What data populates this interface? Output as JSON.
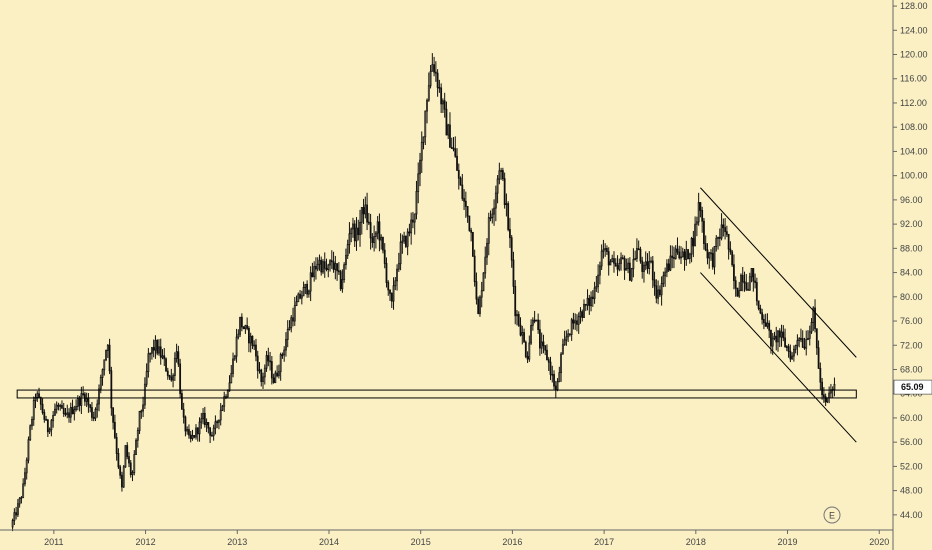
{
  "colors": {
    "background": "#fbf0c4",
    "candle": "#111111",
    "axis": "#666666",
    "text": "#444444",
    "channel": "#000000",
    "last_price_badge": "#ffffff"
  },
  "events_badge": "E",
  "chart_data": {
    "type": "candlestick",
    "x_ticks": [
      "2011",
      "2012",
      "2013",
      "2014",
      "2015",
      "2016",
      "2017",
      "2018",
      "2019",
      "2020"
    ],
    "y_ticks": [
      44,
      48,
      52,
      56,
      60,
      64,
      68,
      72,
      76,
      80,
      84,
      88,
      92,
      96,
      100,
      104,
      108,
      112,
      116,
      120,
      124,
      128
    ],
    "y_tick_labels": [
      "44.00",
      "48.00",
      "52.00",
      "56.00",
      "60.00",
      "64.00",
      "68.00",
      "72.00",
      "76.00",
      "80.00",
      "84.00",
      "88.00",
      "92.00",
      "96.00",
      "100.00",
      "104.00",
      "108.00",
      "112.00",
      "116.00",
      "120.00",
      "124.00",
      "128.00"
    ],
    "ylim": [
      41.5,
      129
    ],
    "xlim": [
      2010.5,
      2020.15
    ],
    "last_price": 65.09,
    "last_price_label": "65.09",
    "grid": false,
    "price_path": [
      [
        2010.55,
        42
      ],
      [
        2010.62,
        45
      ],
      [
        2010.68,
        48
      ],
      [
        2010.76,
        58
      ],
      [
        2010.82,
        64
      ],
      [
        2010.88,
        62
      ],
      [
        2010.95,
        58
      ],
      [
        2011.05,
        62
      ],
      [
        2011.15,
        60
      ],
      [
        2011.25,
        62
      ],
      [
        2011.35,
        64
      ],
      [
        2011.45,
        60
      ],
      [
        2011.52,
        65
      ],
      [
        2011.57,
        70
      ],
      [
        2011.61,
        73
      ],
      [
        2011.64,
        63
      ],
      [
        2011.7,
        55
      ],
      [
        2011.76,
        48
      ],
      [
        2011.8,
        55
      ],
      [
        2011.87,
        50
      ],
      [
        2011.95,
        60
      ],
      [
        2012.0,
        63
      ],
      [
        2012.05,
        70
      ],
      [
        2012.12,
        72
      ],
      [
        2012.2,
        70
      ],
      [
        2012.3,
        66
      ],
      [
        2012.36,
        72
      ],
      [
        2012.42,
        60
      ],
      [
        2012.5,
        56
      ],
      [
        2012.58,
        58
      ],
      [
        2012.65,
        60
      ],
      [
        2012.75,
        57
      ],
      [
        2012.85,
        62
      ],
      [
        2012.95,
        67
      ],
      [
        2013.0,
        72
      ],
      [
        2013.05,
        76
      ],
      [
        2013.12,
        74
      ],
      [
        2013.2,
        72
      ],
      [
        2013.28,
        66
      ],
      [
        2013.35,
        70
      ],
      [
        2013.42,
        66
      ],
      [
        2013.5,
        70
      ],
      [
        2013.6,
        76
      ],
      [
        2013.7,
        80
      ],
      [
        2013.8,
        82
      ],
      [
        2013.9,
        86
      ],
      [
        2014.0,
        84
      ],
      [
        2014.05,
        86
      ],
      [
        2014.1,
        84
      ],
      [
        2014.15,
        82
      ],
      [
        2014.2,
        86
      ],
      [
        2014.25,
        92
      ],
      [
        2014.32,
        90
      ],
      [
        2014.4,
        95
      ],
      [
        2014.45,
        92
      ],
      [
        2014.5,
        88
      ],
      [
        2014.55,
        92
      ],
      [
        2014.62,
        86
      ],
      [
        2014.7,
        78
      ],
      [
        2014.75,
        84
      ],
      [
        2014.8,
        88
      ],
      [
        2014.88,
        90
      ],
      [
        2014.95,
        94
      ],
      [
        2015.0,
        100
      ],
      [
        2015.05,
        108
      ],
      [
        2015.1,
        115
      ],
      [
        2015.15,
        119
      ],
      [
        2015.2,
        116
      ],
      [
        2015.25,
        112
      ],
      [
        2015.3,
        108
      ],
      [
        2015.38,
        104
      ],
      [
        2015.45,
        98
      ],
      [
        2015.52,
        94
      ],
      [
        2015.58,
        90
      ],
      [
        2015.64,
        76
      ],
      [
        2015.7,
        84
      ],
      [
        2015.76,
        92
      ],
      [
        2015.82,
        96
      ],
      [
        2015.88,
        102
      ],
      [
        2015.94,
        96
      ],
      [
        2016.0,
        88
      ],
      [
        2016.05,
        78
      ],
      [
        2016.12,
        74
      ],
      [
        2016.18,
        70
      ],
      [
        2016.25,
        78
      ],
      [
        2016.32,
        72
      ],
      [
        2016.4,
        70
      ],
      [
        2016.5,
        64
      ],
      [
        2016.55,
        70
      ],
      [
        2016.62,
        74
      ],
      [
        2016.7,
        76
      ],
      [
        2016.8,
        78
      ],
      [
        2016.9,
        80
      ],
      [
        2017.0,
        88
      ],
      [
        2017.08,
        86
      ],
      [
        2017.15,
        84
      ],
      [
        2017.22,
        86
      ],
      [
        2017.3,
        84
      ],
      [
        2017.38,
        88
      ],
      [
        2017.45,
        84
      ],
      [
        2017.52,
        86
      ],
      [
        2017.6,
        80
      ],
      [
        2017.68,
        84
      ],
      [
        2017.75,
        86
      ],
      [
        2017.82,
        88
      ],
      [
        2017.9,
        86
      ],
      [
        2018.0,
        90
      ],
      [
        2018.06,
        96
      ],
      [
        2018.12,
        88
      ],
      [
        2018.2,
        86
      ],
      [
        2018.27,
        90
      ],
      [
        2018.33,
        92
      ],
      [
        2018.4,
        86
      ],
      [
        2018.46,
        80
      ],
      [
        2018.52,
        84
      ],
      [
        2018.58,
        82
      ],
      [
        2018.64,
        84
      ],
      [
        2018.7,
        78
      ],
      [
        2018.78,
        76
      ],
      [
        2018.85,
        72
      ],
      [
        2018.92,
        74
      ],
      [
        2019.0,
        72
      ],
      [
        2019.07,
        70
      ],
      [
        2019.14,
        74
      ],
      [
        2019.2,
        72
      ],
      [
        2019.26,
        75
      ],
      [
        2019.3,
        77
      ],
      [
        2019.35,
        70
      ],
      [
        2019.38,
        65
      ],
      [
        2019.43,
        62
      ],
      [
        2019.48,
        64
      ],
      [
        2019.52,
        65
      ]
    ],
    "annotations": {
      "support_band": {
        "x": [
          2010.6,
          2019.75
        ],
        "y": [
          63.3,
          64.6
        ]
      },
      "channel_upper": {
        "x": [
          2018.05,
          2019.75
        ],
        "y": [
          98,
          70
        ]
      },
      "channel_lower": {
        "x": [
          2018.05,
          2019.75
        ],
        "y": [
          84,
          56
        ]
      }
    }
  }
}
